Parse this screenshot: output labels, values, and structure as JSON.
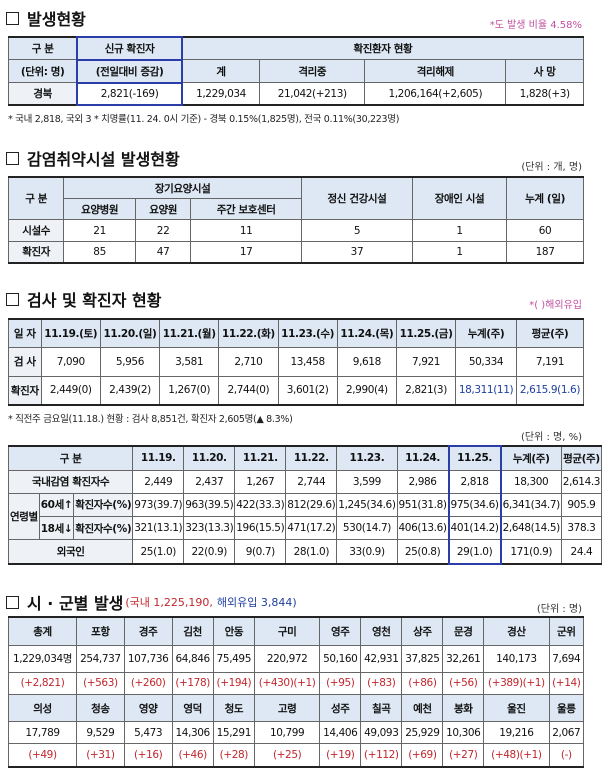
{
  "s1": {
    "title": "발생현황",
    "note": "*도 발생 비율 4.58%",
    "table": {
      "h_div": "구 분",
      "h_unit": "(단위: 명)",
      "h_new": "신규 확진자",
      "h_new_sub": "(전일대비 증감)",
      "h_status": "확진환자 현황",
      "sub": [
        "계",
        "격리중",
        "격리해제",
        "사 망"
      ],
      "row": [
        "경북",
        "2,821(-169)",
        "1,229,034",
        "21,042(+213)",
        "1,206,164(+2,605)",
        "1,828(+3)"
      ]
    },
    "footnote": "* 국내 2,818, 국외 3  * 치명률(11. 24. 0시 기준) - 경북 0.15%(1,825명), 전국 0.11%(30,223명)"
  },
  "s2": {
    "title": "감염취약시설 발생현황",
    "unit": "(단위 : 개, 명)",
    "table": {
      "h_div": "구 분",
      "h_long": "장기요양시설",
      "h_sub": [
        "요양병원",
        "요양원",
        "주간 보호센터"
      ],
      "h_mental": "정신 건강시설",
      "h_disabled": "장애인 시설",
      "h_total": "누계 (일)",
      "rows": [
        [
          "시설수",
          "21",
          "22",
          "11",
          "5",
          "1",
          "60"
        ],
        [
          "확진자",
          "85",
          "47",
          "17",
          "37",
          "1",
          "187"
        ]
      ]
    }
  },
  "s3": {
    "title": "검사 및 확진자 현황",
    "note": "*( )해외유입",
    "table": {
      "header": [
        "일 자",
        "11.19.(토)",
        "11.20.(일)",
        "11.21.(월)",
        "11.22.(화)",
        "11.23.(수)",
        "11.24.(목)",
        "11.25.(금)",
        "누계(주)",
        "평균(주)"
      ],
      "rows": [
        [
          "검 사",
          "7,090",
          "5,956",
          "3,581",
          "2,710",
          "13,458",
          "9,618",
          "7,921",
          "50,334",
          "7,191"
        ],
        [
          "확진자",
          "2,449(0)",
          "2,439(2)",
          "1,267(0)",
          "2,744(0)",
          "3,601(2)",
          "2,990(4)",
          "2,821(3)",
          "18,311(11)",
          "2,615.9(1.6)"
        ]
      ]
    },
    "footnote": "* 직전주 금요일(11.18.) 현황 : 검사 8,851건, 확진자 2,605명(▲ 8.3%)",
    "unit": "(단위 : 명, %)",
    "table2": {
      "header": [
        "구 분",
        "11.19.",
        "11.20.",
        "11.21.",
        "11.22.",
        "11.23.",
        "11.24.",
        "11.25.",
        "누계(주)",
        "평균(주)"
      ],
      "domestic": [
        "국내감염 확진자수",
        "2,449",
        "2,437",
        "1,267",
        "2,744",
        "3,599",
        "2,986",
        "2,818",
        "18,300",
        "2,614.3"
      ],
      "age_label": "연령별",
      "age_rows": [
        [
          "60세↑",
          "확진자수(%)",
          "973(39.7)",
          "963(39.5)",
          "422(33.3)",
          "812(29.6)",
          "1,245(34.6)",
          "951(31.8)",
          "975(34.6)",
          "6,341(34.7)",
          "905.9"
        ],
        [
          "18세↓",
          "확진자수(%)",
          "321(13.1)",
          "323(13.3)",
          "196(15.5)",
          "471(17.2)",
          "530(14.7)",
          "406(13.6)",
          "401(14.2)",
          "2,648(14.5)",
          "378.3"
        ]
      ],
      "foreign": [
        "외국인",
        "25(1.0)",
        "22(0.9)",
        "9(0.7)",
        "28(1.0)",
        "33(0.9)",
        "25(0.8)",
        "29(1.0)",
        "171(0.9)",
        "24.4"
      ]
    }
  },
  "s5": {
    "title": "시 · 군별 발생",
    "domestic": "(국내 1,225,190,",
    "abroad": "해외유입 3,844)",
    "unit": "(단위 : 명)",
    "blocks": [
      {
        "names": [
          "총계",
          "포항",
          "경주",
          "김천",
          "안동",
          "구미",
          "영주",
          "영천",
          "상주",
          "문경",
          "경산",
          "군위"
        ],
        "values": [
          "1,229,034명",
          "254,737",
          "107,736",
          "64,846",
          "75,495",
          "220,972",
          "50,160",
          "42,931",
          "37,825",
          "32,261",
          "140,173",
          "7,694"
        ],
        "changes": [
          "(+2,821)",
          "(+563)",
          "(+260)",
          "(+178)",
          "(+194)",
          "(+430)(+1)",
          "(+95)",
          "(+83)",
          "(+86)",
          "(+56)",
          "(+389)(+1)",
          "(+14)"
        ]
      },
      {
        "names": [
          "의성",
          "청송",
          "영양",
          "영덕",
          "청도",
          "고령",
          "성주",
          "칠곡",
          "예천",
          "봉화",
          "울진",
          "울릉"
        ],
        "values": [
          "17,789",
          "9,529",
          "5,473",
          "14,306",
          "15,291",
          "10,799",
          "14,406",
          "49,093",
          "25,929",
          "10,306",
          "19,216",
          "2,067"
        ],
        "changes": [
          "(+49)",
          "(+31)",
          "(+16)",
          "(+46)",
          "(+28)",
          "(+25)",
          "(+19)",
          "(+112)",
          "(+69)",
          "(+27)",
          "(+48)(+1)",
          "(-)"
        ]
      }
    ]
  }
}
